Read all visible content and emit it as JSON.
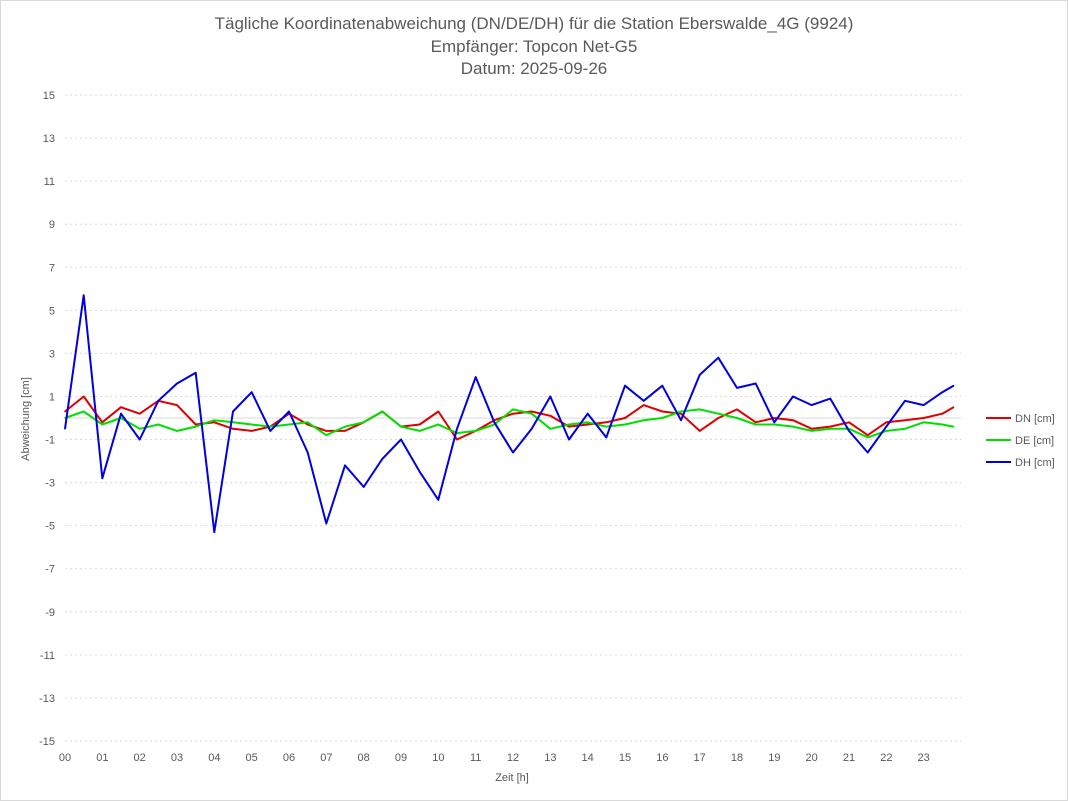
{
  "chart_data": {
    "type": "line",
    "title_lines": [
      "Tägliche Koordinatenabweichung (DN/DE/DH) für die Station Eberswalde_4G (9924)",
      "Empfänger: Topcon Net-G5",
      "Datum: 2025-09-26"
    ],
    "xlabel": "Zeit [h]",
    "ylabel": "Abweichung [cm]",
    "xlim": [
      0,
      24
    ],
    "ylim": [
      -15,
      15
    ],
    "x_ticks": [
      "00",
      "01",
      "02",
      "03",
      "04",
      "05",
      "06",
      "07",
      "08",
      "09",
      "10",
      "11",
      "12",
      "13",
      "14",
      "15",
      "16",
      "17",
      "18",
      "19",
      "20",
      "21",
      "22",
      "23"
    ],
    "y_ticks": [
      "15",
      "13",
      "11",
      "9",
      "7",
      "5",
      "3",
      "1",
      "-1",
      "-3",
      "-5",
      "-7",
      "-9",
      "-11",
      "-13",
      "-15"
    ],
    "x": [
      0,
      0.5,
      1,
      1.5,
      2,
      2.5,
      3,
      3.5,
      4,
      4.5,
      5,
      5.5,
      6,
      6.5,
      7,
      7.5,
      8,
      8.5,
      9,
      9.5,
      10,
      10.5,
      11,
      11.5,
      12,
      12.5,
      13,
      13.5,
      14,
      14.5,
      15,
      15.5,
      16,
      16.5,
      17,
      17.5,
      18,
      18.5,
      19,
      19.5,
      20,
      20.5,
      21,
      21.5,
      22,
      22.5,
      23,
      23.5,
      23.8
    ],
    "series": [
      {
        "name": "DN [cm]",
        "color": "#e00000",
        "values": [
          0.3,
          1.0,
          -0.2,
          0.5,
          0.2,
          0.8,
          0.6,
          -0.3,
          -0.2,
          -0.5,
          -0.6,
          -0.4,
          0.2,
          -0.3,
          -0.6,
          -0.6,
          -0.2,
          0.3,
          -0.4,
          -0.3,
          0.3,
          -1.0,
          -0.6,
          -0.1,
          0.2,
          0.3,
          0.1,
          -0.4,
          -0.3,
          -0.2,
          0.0,
          0.6,
          0.3,
          0.2,
          -0.6,
          0.0,
          0.4,
          -0.2,
          0.0,
          -0.1,
          -0.5,
          -0.4,
          -0.2,
          -0.8,
          -0.2,
          -0.1,
          0.0,
          0.2,
          0.5
        ]
      },
      {
        "name": "DE [cm]",
        "color": "#00e000",
        "values": [
          0.0,
          0.3,
          -0.3,
          0.0,
          -0.5,
          -0.3,
          -0.6,
          -0.4,
          -0.1,
          -0.2,
          -0.3,
          -0.4,
          -0.3,
          -0.2,
          -0.8,
          -0.4,
          -0.2,
          0.3,
          -0.4,
          -0.6,
          -0.3,
          -0.7,
          -0.6,
          -0.3,
          0.4,
          0.2,
          -0.5,
          -0.3,
          -0.2,
          -0.4,
          -0.3,
          -0.1,
          0.0,
          0.3,
          0.4,
          0.2,
          0.0,
          -0.3,
          -0.3,
          -0.4,
          -0.6,
          -0.5,
          -0.5,
          -0.9,
          -0.6,
          -0.5,
          -0.2,
          -0.3,
          -0.4
        ]
      },
      {
        "name": "DH [cm]",
        "color": "#0000e0",
        "values": [
          -0.5,
          5.7,
          -2.8,
          0.2,
          -1.0,
          0.8,
          1.6,
          2.1,
          -5.3,
          0.3,
          1.2,
          -0.6,
          0.3,
          -1.6,
          -4.9,
          -2.2,
          -3.2,
          -1.9,
          -1.0,
          -2.5,
          -3.8,
          -0.5,
          1.9,
          -0.2,
          -1.6,
          -0.5,
          1.0,
          -1.0,
          0.2,
          -0.9,
          1.5,
          0.8,
          1.5,
          -0.1,
          2.0,
          2.8,
          1.4,
          1.6,
          -0.2,
          1.0,
          0.6,
          0.9,
          -0.6,
          -1.6,
          -0.4,
          0.8,
          0.6,
          1.2,
          1.5
        ]
      }
    ],
    "legend": {
      "position": "right",
      "entries": [
        "DN [cm]",
        "DE [cm]",
        "DH [cm]"
      ]
    },
    "grid": true
  }
}
